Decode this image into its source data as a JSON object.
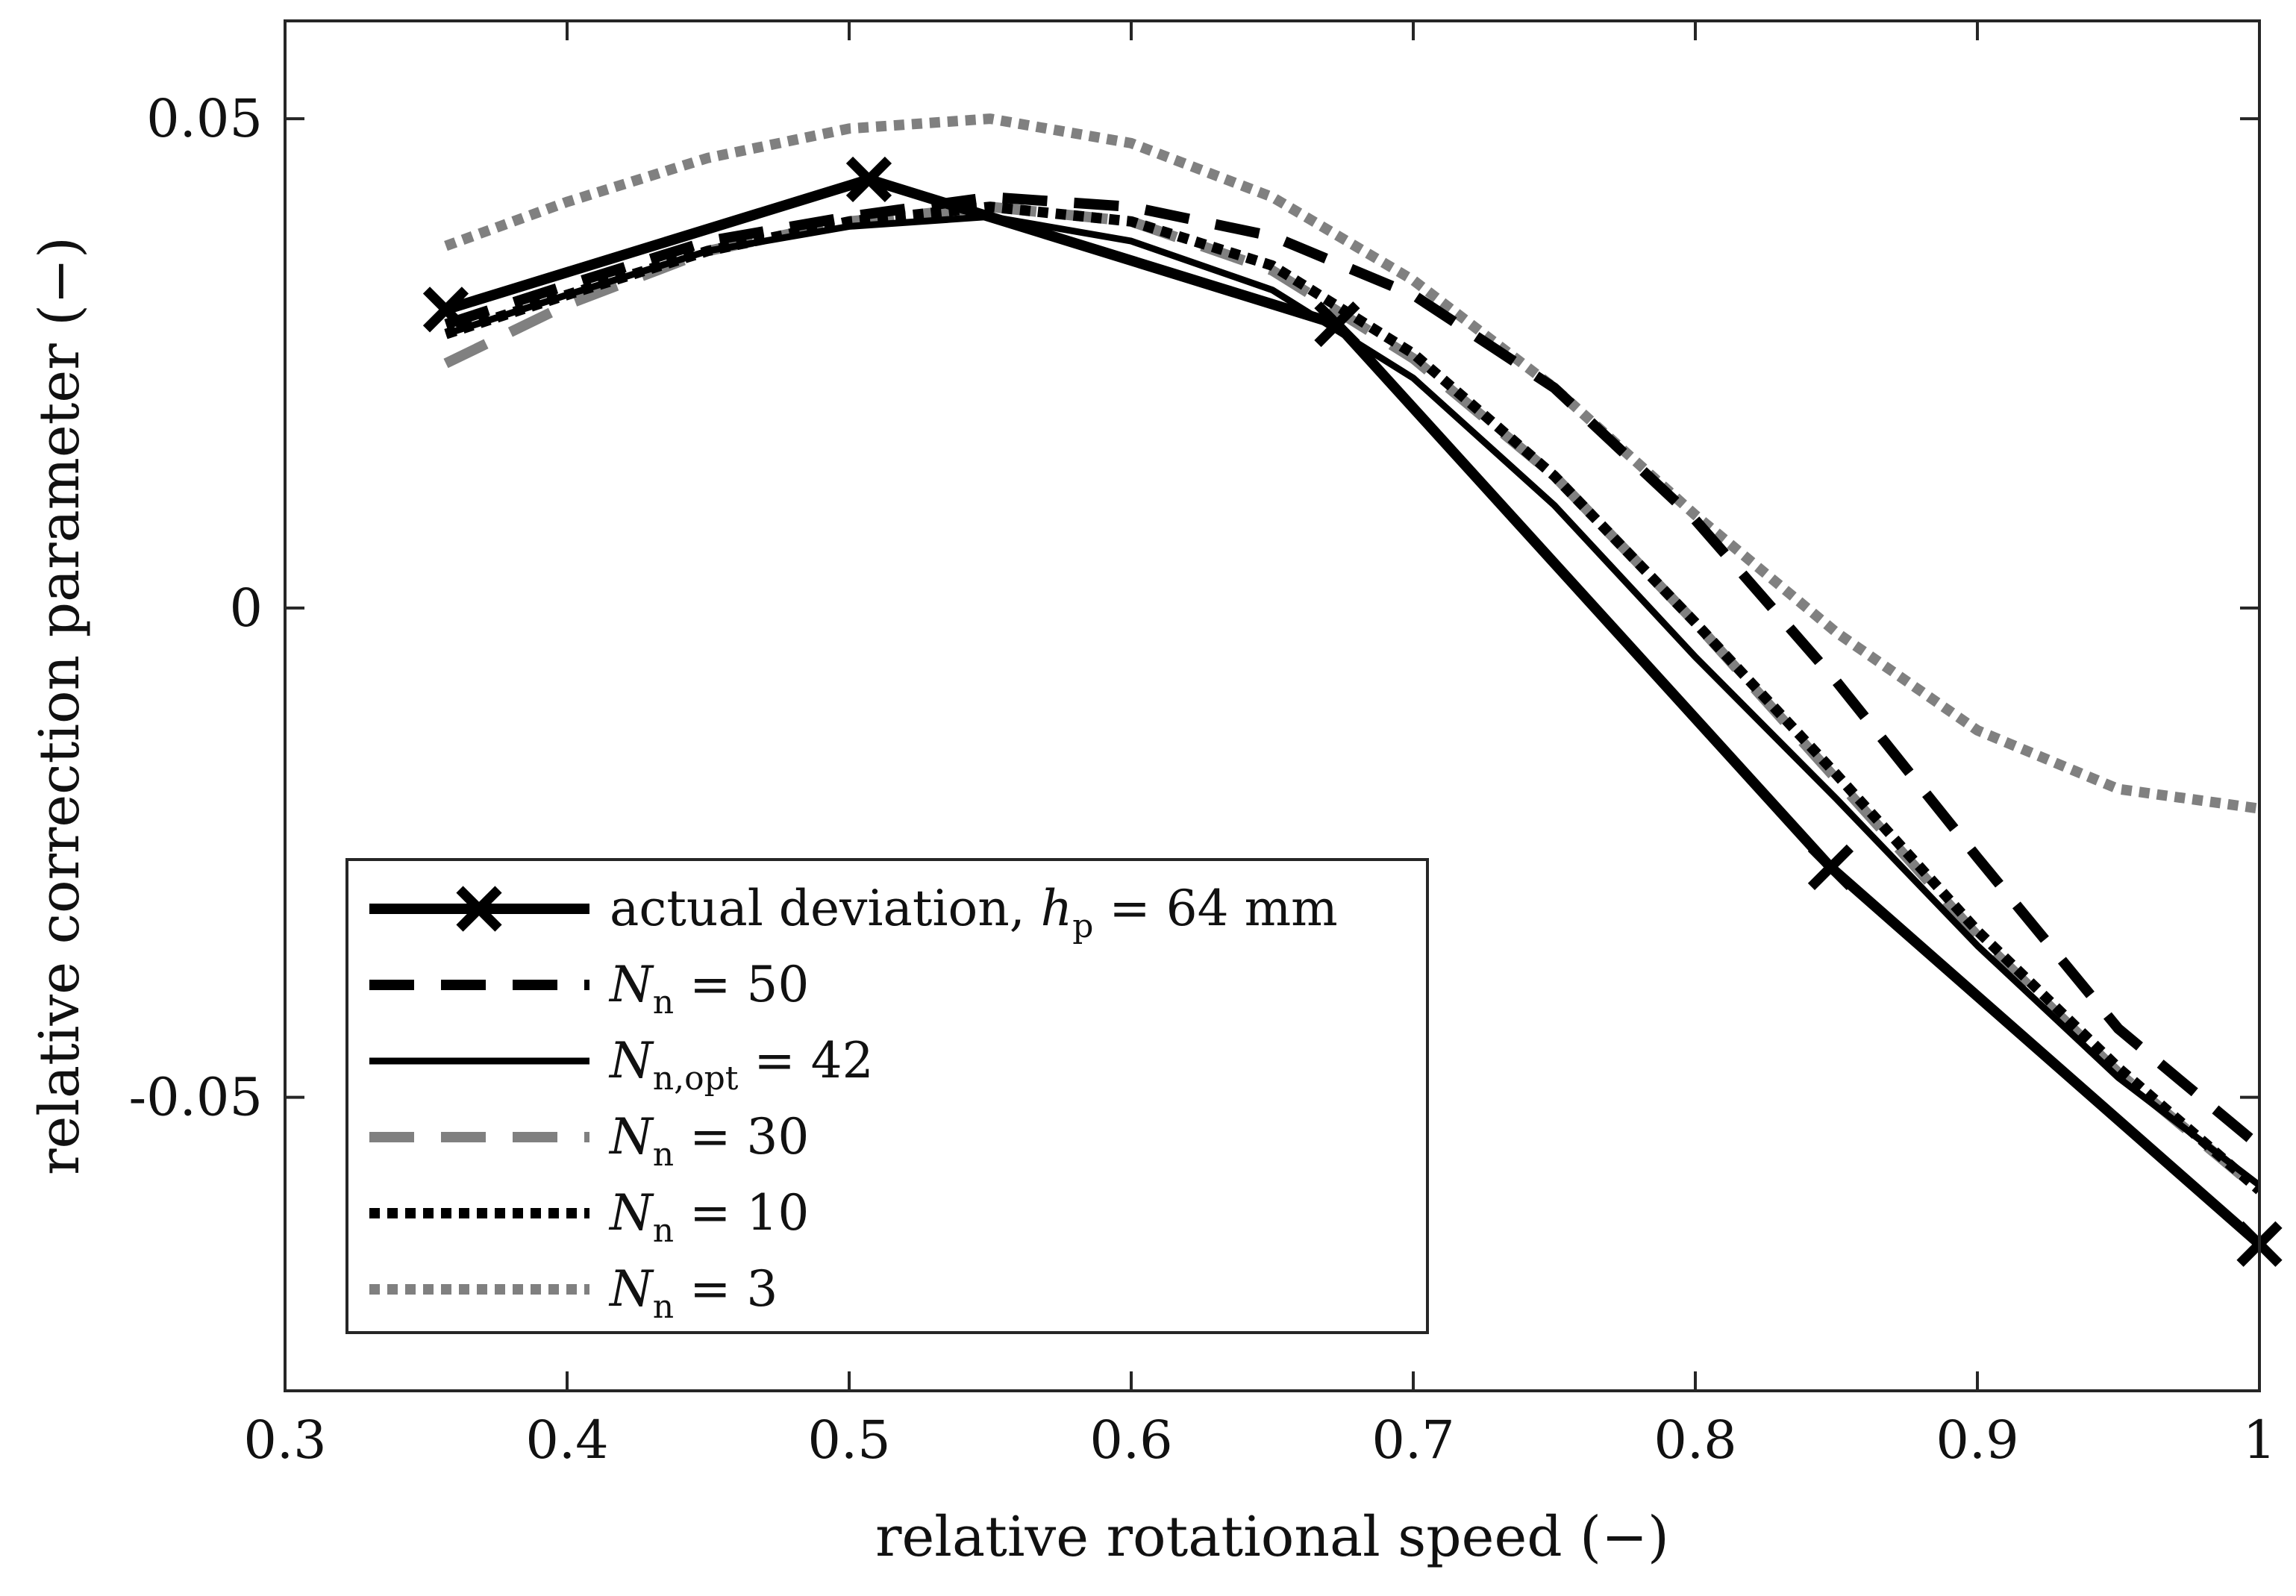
{
  "chart_data": {
    "type": "line",
    "title": "",
    "xlabel": "relative rotational speed (−)",
    "ylabel": "relative correction parameter (−)",
    "xlim": [
      0.3,
      1.0
    ],
    "ylim": [
      -0.08,
      0.06
    ],
    "xticks": [
      0.3,
      0.4,
      0.5,
      0.6,
      0.7,
      0.8,
      0.9,
      1.0
    ],
    "xtick_labels": [
      "0.3",
      "0.4",
      "0.5",
      "0.6",
      "0.7",
      "0.8",
      "0.9",
      "1"
    ],
    "yticks": [
      -0.05,
      0,
      0.05
    ],
    "ytick_labels": [
      "-0.05",
      "0",
      "0.05"
    ],
    "grid": false,
    "legend_position": "bottom-left",
    "series": [
      {
        "name": "actual deviation, h_p = 64 mm",
        "legend": {
          "pre": "actual deviation, ",
          "var": "h",
          "sub": "p",
          "post": " = 64 mm"
        },
        "color": "#000000",
        "style": "solid",
        "width": 14,
        "marker": "x",
        "x": [
          0.357,
          0.507,
          0.673,
          0.848,
          1.0
        ],
        "y": [
          0.0305,
          0.0438,
          0.029,
          -0.0265,
          -0.065
        ]
      },
      {
        "name": "N_n = 50",
        "legend": {
          "pre": "",
          "var": "N",
          "sub": "n",
          "post": " = 50"
        },
        "color": "#000000",
        "style": "dashed",
        "width": 14,
        "marker": "none",
        "x": [
          0.357,
          0.4,
          0.45,
          0.5,
          0.55,
          0.6,
          0.65,
          0.7,
          0.75,
          0.8,
          0.85,
          0.9,
          0.95,
          1.0
        ],
        "y": [
          0.029,
          0.033,
          0.0375,
          0.04,
          0.042,
          0.041,
          0.038,
          0.032,
          0.0225,
          0.009,
          -0.0075,
          -0.0255,
          -0.043,
          -0.055
        ]
      },
      {
        "name": "N_n,opt = 42",
        "legend": {
          "pre": "",
          "var": "N",
          "sub": "n,opt",
          "post": " = 42"
        },
        "color": "#000000",
        "style": "solid",
        "width": 9,
        "marker": "none",
        "x": [
          0.357,
          0.4,
          0.45,
          0.5,
          0.55,
          0.6,
          0.65,
          0.7,
          0.75,
          0.8,
          0.85,
          0.9,
          0.95,
          1.0
        ],
        "y": [
          0.028,
          0.032,
          0.0365,
          0.039,
          0.04,
          0.0375,
          0.0325,
          0.0235,
          0.0105,
          -0.005,
          -0.0195,
          -0.0345,
          -0.048,
          -0.059
        ]
      },
      {
        "name": "N_n = 30",
        "legend": {
          "pre": "",
          "var": "N",
          "sub": "n",
          "post": " = 30"
        },
        "color": "#808080",
        "style": "dashed",
        "width": 14,
        "marker": "none",
        "x": [
          0.357,
          0.4,
          0.45,
          0.5,
          0.55,
          0.6,
          0.65,
          0.7,
          0.75,
          0.8,
          0.85,
          0.9,
          0.95,
          1.0
        ],
        "y": [
          0.025,
          0.031,
          0.0365,
          0.0395,
          0.041,
          0.0395,
          0.0345,
          0.0255,
          0.0135,
          -0.0015,
          -0.0175,
          -0.0335,
          -0.0475,
          -0.0595
        ]
      },
      {
        "name": "N_n = 10",
        "legend": {
          "pre": "",
          "var": "N",
          "sub": "n",
          "post": " = 10"
        },
        "color": "#000000",
        "style": "dotted",
        "width": 14,
        "marker": "none",
        "x": [
          0.357,
          0.4,
          0.45,
          0.5,
          0.55,
          0.6,
          0.65,
          0.7,
          0.75,
          0.8,
          0.85,
          0.9,
          0.95,
          1.0
        ],
        "y": [
          0.028,
          0.032,
          0.0365,
          0.0395,
          0.041,
          0.0395,
          0.035,
          0.026,
          0.0135,
          -0.0015,
          -0.017,
          -0.033,
          -0.047,
          -0.0595
        ]
      },
      {
        "name": "N_n = 3",
        "legend": {
          "pre": "",
          "var": "N",
          "sub": "n",
          "post": " = 3"
        },
        "color": "#808080",
        "style": "dotted",
        "width": 14,
        "marker": "none",
        "x": [
          0.357,
          0.4,
          0.45,
          0.5,
          0.55,
          0.6,
          0.65,
          0.7,
          0.75,
          0.8,
          0.85,
          0.9,
          0.95,
          1.0
        ],
        "y": [
          0.037,
          0.0415,
          0.046,
          0.049,
          0.05,
          0.0475,
          0.042,
          0.0335,
          0.0225,
          0.0095,
          -0.0025,
          -0.0125,
          -0.0185,
          -0.0205
        ]
      }
    ]
  }
}
